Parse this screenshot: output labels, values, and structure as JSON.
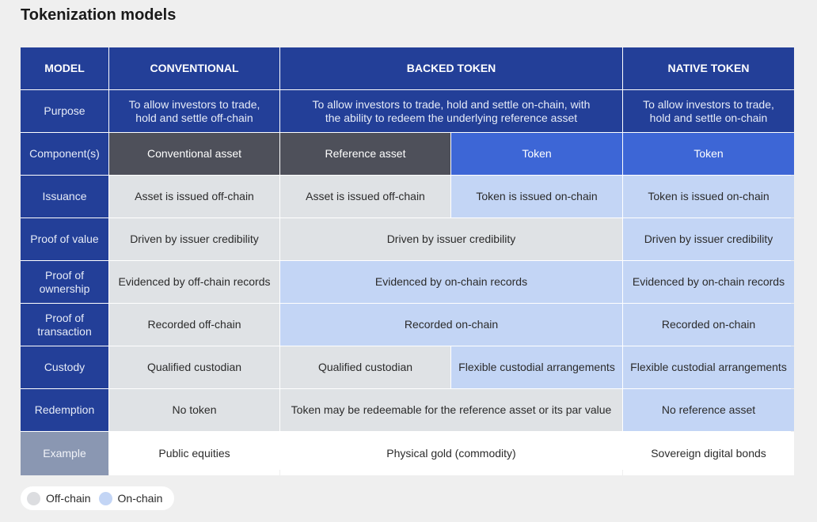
{
  "title": "Tokenization models",
  "colors": {
    "header": "#233f98",
    "example_label": "#8a97b2",
    "conventional_dark": "#4e505a",
    "token_blue": "#3d66d6",
    "off_chain": "#dfe2e5",
    "on_chain": "#c3d5f5"
  },
  "header": {
    "model": "MODEL",
    "conventional": "CONVENTIONAL",
    "backed": "BACKED TOKEN",
    "native": "NATIVE TOKEN"
  },
  "purpose": {
    "label": "Purpose",
    "conventional": "To allow investors to trade, hold and settle off-chain",
    "backed": "To allow investors to trade, hold and settle on-chain, with the ability to redeem the underlying reference asset",
    "native": "To allow investors to trade, hold and settle on-chain"
  },
  "components": {
    "label": "Component(s)",
    "conventional": "Conventional asset",
    "backed_reference": "Reference asset",
    "backed_token": "Token",
    "native": "Token"
  },
  "issuance": {
    "label": "Issuance",
    "conventional": "Asset is issued off-chain",
    "backed_reference": "Asset is issued off-chain",
    "backed_token": "Token is issued on-chain",
    "native": "Token is issued on-chain"
  },
  "proof_value": {
    "label": "Proof of value",
    "conventional": "Driven by issuer credibility",
    "backed": "Driven by issuer credibility",
    "native": "Driven by issuer credibility"
  },
  "proof_ownership": {
    "label": "Proof of ownership",
    "conventional": "Evidenced by off-chain records",
    "backed": "Evidenced by on-chain records",
    "native": "Evidenced by on-chain records"
  },
  "proof_transaction": {
    "label": "Proof of transaction",
    "conventional": "Recorded off-chain",
    "backed": "Recorded on-chain",
    "native": "Recorded on-chain"
  },
  "custody": {
    "label": "Custody",
    "conventional": "Qualified custodian",
    "backed_reference": "Qualified custodian",
    "backed_token": "Flexible custodial arrangements",
    "native": "Flexible custodial arrangements"
  },
  "redemption": {
    "label": "Redemption",
    "conventional": "No token",
    "backed": "Token may be redeemable for the reference asset or its par value",
    "native": "No reference asset"
  },
  "example": {
    "label": "Example",
    "conventional": "Public equities",
    "backed": "Physical gold (commodity)",
    "native": "Sovereign digital bonds"
  },
  "legend": {
    "off_chain": "Off-chain",
    "on_chain": "On-chain"
  }
}
